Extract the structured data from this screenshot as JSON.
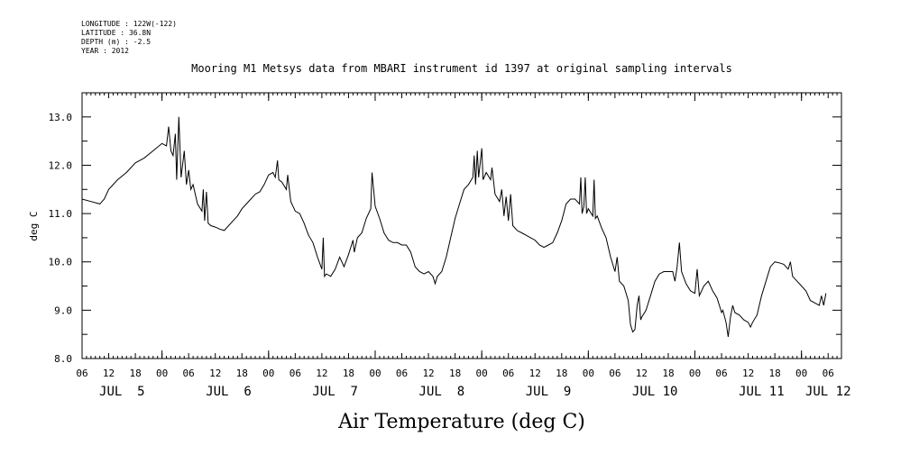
{
  "header": {
    "longitude": "LONGITUDE : 122W(-122)",
    "latitude": "LATITUDE : 36.8N",
    "depth": "DEPTH (m) : -2.5",
    "year": "YEAR : 2012"
  },
  "chart_data": {
    "type": "line",
    "title": "Mooring M1 Metsys data from MBARI instrument id 1397 at original sampling intervals",
    "xlabel": "Air Temperature (deg C)",
    "ylabel": "deg C",
    "ylim": [
      8.0,
      13.5
    ],
    "xlim_hours": [
      0,
      171
    ],
    "y_ticks": [
      "8.0",
      "9.0",
      "10.0",
      "11.0",
      "12.0",
      "13.0"
    ],
    "x_hour_ticks": [
      "06",
      "12",
      "18",
      "00",
      "06",
      "12",
      "18",
      "00",
      "06",
      "12",
      "18",
      "00",
      "06",
      "12",
      "18",
      "00",
      "06",
      "12",
      "18",
      "00",
      "06",
      "12",
      "18",
      "00",
      "06",
      "12",
      "18",
      "00",
      "06"
    ],
    "x_day_labels": [
      {
        "label": "JUL  5",
        "hour": 9
      },
      {
        "label": "JUL  6",
        "hour": 33
      },
      {
        "label": "JUL  7",
        "hour": 57
      },
      {
        "label": "JUL  8",
        "hour": 81
      },
      {
        "label": "JUL  9",
        "hour": 105
      },
      {
        "label": "JUL 10",
        "hour": 129
      },
      {
        "label": "JUL 11",
        "hour": 153
      },
      {
        "label": "JUL 12",
        "hour": 168
      }
    ],
    "grid": false,
    "series": [
      {
        "points": [
          [
            0,
            11.3
          ],
          [
            2,
            11.25
          ],
          [
            4,
            11.2
          ],
          [
            5,
            11.3
          ],
          [
            6,
            11.5
          ],
          [
            7,
            11.6
          ],
          [
            8,
            11.7
          ],
          [
            10,
            11.85
          ],
          [
            12,
            12.05
          ],
          [
            14,
            12.15
          ],
          [
            16,
            12.3
          ],
          [
            18,
            12.45
          ],
          [
            19,
            12.4
          ],
          [
            19.5,
            12.8
          ],
          [
            20,
            12.3
          ],
          [
            20.5,
            12.2
          ],
          [
            21,
            12.65
          ],
          [
            21.3,
            11.7
          ],
          [
            21.8,
            13.0
          ],
          [
            22.3,
            11.75
          ],
          [
            23,
            12.3
          ],
          [
            23.5,
            11.6
          ],
          [
            24,
            11.9
          ],
          [
            24.5,
            11.5
          ],
          [
            25,
            11.6
          ],
          [
            26,
            11.2
          ],
          [
            27,
            11.05
          ],
          [
            27.3,
            11.5
          ],
          [
            27.6,
            10.85
          ],
          [
            28,
            11.45
          ],
          [
            28.4,
            10.8
          ],
          [
            29,
            10.75
          ],
          [
            30,
            10.72
          ],
          [
            31,
            10.68
          ],
          [
            32,
            10.65
          ],
          [
            33,
            10.75
          ],
          [
            34,
            10.85
          ],
          [
            35,
            10.95
          ],
          [
            36,
            11.1
          ],
          [
            37,
            11.2
          ],
          [
            38,
            11.3
          ],
          [
            39,
            11.4
          ],
          [
            40,
            11.45
          ],
          [
            41,
            11.6
          ],
          [
            42,
            11.8
          ],
          [
            43,
            11.85
          ],
          [
            43.5,
            11.75
          ],
          [
            44,
            12.1
          ],
          [
            44.3,
            11.7
          ],
          [
            45,
            11.65
          ],
          [
            46,
            11.5
          ],
          [
            46.3,
            11.8
          ],
          [
            47,
            11.25
          ],
          [
            48,
            11.05
          ],
          [
            49,
            11.0
          ],
          [
            50,
            10.8
          ],
          [
            51,
            10.55
          ],
          [
            52,
            10.4
          ],
          [
            53,
            10.1
          ],
          [
            54,
            9.85
          ],
          [
            54.3,
            10.5
          ],
          [
            54.6,
            9.7
          ],
          [
            55,
            9.75
          ],
          [
            56,
            9.7
          ],
          [
            57,
            9.85
          ],
          [
            58,
            10.1
          ],
          [
            59,
            9.9
          ],
          [
            60,
            10.15
          ],
          [
            61,
            10.45
          ],
          [
            61.3,
            10.2
          ],
          [
            62,
            10.5
          ],
          [
            63,
            10.6
          ],
          [
            64,
            10.9
          ],
          [
            65,
            11.1
          ],
          [
            65.3,
            11.85
          ],
          [
            66,
            11.15
          ],
          [
            67,
            10.9
          ],
          [
            68,
            10.6
          ],
          [
            69,
            10.45
          ],
          [
            70,
            10.4
          ],
          [
            71,
            10.4
          ],
          [
            72,
            10.35
          ],
          [
            73,
            10.35
          ],
          [
            74,
            10.2
          ],
          [
            75,
            9.9
          ],
          [
            76,
            9.8
          ],
          [
            77,
            9.75
          ],
          [
            78,
            9.8
          ],
          [
            79,
            9.7
          ],
          [
            79.5,
            9.55
          ],
          [
            80,
            9.7
          ],
          [
            81,
            9.8
          ],
          [
            82,
            10.1
          ],
          [
            83,
            10.5
          ],
          [
            84,
            10.9
          ],
          [
            85,
            11.2
          ],
          [
            86,
            11.5
          ],
          [
            87,
            11.6
          ],
          [
            88,
            11.75
          ],
          [
            88.3,
            12.2
          ],
          [
            88.6,
            11.6
          ],
          [
            89,
            12.3
          ],
          [
            89.3,
            11.75
          ],
          [
            90,
            12.35
          ],
          [
            90.3,
            11.7
          ],
          [
            91,
            11.85
          ],
          [
            92,
            11.7
          ],
          [
            92.3,
            11.95
          ],
          [
            93,
            11.4
          ],
          [
            94,
            11.25
          ],
          [
            94.5,
            11.5
          ],
          [
            95,
            10.95
          ],
          [
            95.5,
            11.35
          ],
          [
            96,
            10.85
          ],
          [
            96.5,
            11.4
          ],
          [
            97,
            10.75
          ],
          [
            98,
            10.65
          ],
          [
            99,
            10.6
          ],
          [
            100,
            10.55
          ],
          [
            101,
            10.5
          ],
          [
            102,
            10.45
          ],
          [
            103,
            10.35
          ],
          [
            104,
            10.3
          ],
          [
            105,
            10.35
          ],
          [
            106,
            10.4
          ],
          [
            107,
            10.6
          ],
          [
            108,
            10.85
          ],
          [
            109,
            11.2
          ],
          [
            110,
            11.3
          ],
          [
            111,
            11.3
          ],
          [
            112,
            11.2
          ],
          [
            112.3,
            11.75
          ],
          [
            112.6,
            11.0
          ],
          [
            113,
            11.15
          ],
          [
            113.3,
            11.75
          ],
          [
            113.6,
            11.0
          ],
          [
            114,
            11.1
          ],
          [
            115,
            10.95
          ],
          [
            115.3,
            11.7
          ],
          [
            115.6,
            10.9
          ],
          [
            116,
            10.95
          ],
          [
            117,
            10.7
          ],
          [
            118,
            10.5
          ],
          [
            119,
            10.1
          ],
          [
            120,
            9.8
          ],
          [
            120.5,
            10.1
          ],
          [
            121,
            9.6
          ],
          [
            122,
            9.5
          ],
          [
            123,
            9.2
          ],
          [
            123.5,
            8.7
          ],
          [
            124,
            8.55
          ],
          [
            124.5,
            8.6
          ],
          [
            125,
            9.1
          ],
          [
            125.4,
            9.3
          ],
          [
            125.8,
            8.8
          ],
          [
            126,
            8.85
          ],
          [
            127,
            9.0
          ],
          [
            128,
            9.3
          ],
          [
            129,
            9.6
          ],
          [
            130,
            9.75
          ],
          [
            131,
            9.8
          ],
          [
            132,
            9.8
          ],
          [
            133,
            9.8
          ],
          [
            133.5,
            9.6
          ],
          [
            134,
            9.9
          ],
          [
            134.5,
            10.4
          ],
          [
            135,
            9.8
          ],
          [
            136,
            9.55
          ],
          [
            137,
            9.4
          ],
          [
            138,
            9.35
          ],
          [
            138.5,
            9.85
          ],
          [
            139,
            9.3
          ],
          [
            140,
            9.5
          ],
          [
            141,
            9.6
          ],
          [
            142,
            9.4
          ],
          [
            143,
            9.25
          ],
          [
            143.5,
            9.1
          ],
          [
            144,
            8.95
          ],
          [
            144.3,
            9.0
          ],
          [
            145,
            8.75
          ],
          [
            145.5,
            8.45
          ],
          [
            146,
            8.85
          ],
          [
            146.5,
            9.1
          ],
          [
            147,
            8.95
          ],
          [
            148,
            8.9
          ],
          [
            149,
            8.8
          ],
          [
            150,
            8.75
          ],
          [
            150.5,
            8.65
          ],
          [
            151,
            8.75
          ],
          [
            152,
            8.9
          ],
          [
            153,
            9.3
          ],
          [
            154,
            9.6
          ],
          [
            155,
            9.9
          ],
          [
            156,
            10.0
          ],
          [
            157,
            9.98
          ],
          [
            158,
            9.95
          ],
          [
            159,
            9.85
          ],
          [
            159.5,
            10.0
          ],
          [
            160,
            9.7
          ],
          [
            161,
            9.6
          ],
          [
            162,
            9.5
          ],
          [
            163,
            9.4
          ],
          [
            164,
            9.2
          ],
          [
            165,
            9.15
          ],
          [
            166,
            9.1
          ],
          [
            166.5,
            9.3
          ],
          [
            167,
            9.1
          ],
          [
            167.5,
            9.35
          ]
        ]
      }
    ]
  }
}
